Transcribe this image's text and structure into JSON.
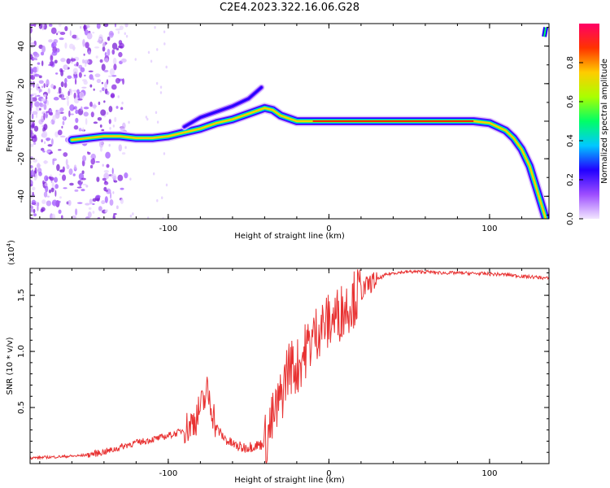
{
  "title": "C2E4.2023.322.16.06.G28",
  "chart_data": [
    {
      "type": "heatmap",
      "xlabel": "Height of straight line (km)",
      "ylabel": "Frequency (Hz)",
      "xlim": [
        -186,
        137
      ],
      "ylim": [
        -52,
        52
      ],
      "xticks": [
        -100,
        0,
        100
      ],
      "yticks": [
        -40,
        -20,
        0,
        20,
        40
      ],
      "colorbar": {
        "label": "Normalized spectral amplitude",
        "range": [
          0,
          1
        ],
        "ticks": [
          "0.0",
          "0.2",
          "0.4",
          "0.6",
          "0.8"
        ],
        "colors": [
          "#f2e6ff",
          "#9d4dff",
          "#2200ff",
          "#00c8ff",
          "#00ff66",
          "#aaff00",
          "#ffcc00",
          "#ff3300",
          "#ff0066"
        ]
      },
      "ridge": {
        "x": [
          -160,
          -150,
          -140,
          -130,
          -120,
          -110,
          -100,
          -90,
          -80,
          -70,
          -60,
          -50,
          -40,
          -35,
          -30,
          -20,
          -10,
          0,
          10,
          50,
          90,
          100,
          105,
          110,
          115,
          120,
          125,
          130,
          135
        ],
        "y": [
          -10,
          -9,
          -8,
          -8,
          -9,
          -9,
          -8,
          -6,
          -4,
          -1,
          1,
          4,
          7,
          6,
          3,
          0,
          0,
          0,
          0,
          0,
          0,
          -1,
          -3,
          -5,
          -9,
          -15,
          -24,
          -38,
          -52
        ]
      },
      "secondary_ridge": {
        "x": [
          -90,
          -80,
          -70,
          -60,
          -50,
          -42
        ],
        "y": [
          -3,
          2,
          5,
          8,
          12,
          18
        ]
      },
      "edge_feature": {
        "x": 134,
        "y": [
          45,
          50
        ]
      }
    },
    {
      "type": "line",
      "xlabel": "Height of straight line (km)",
      "ylabel": "SNR (10 * v/v)",
      "scale_note": "(x10",
      "scale_exp": "4",
      "xlim": [
        -186,
        137
      ],
      "ylim": [
        0,
        17400
      ],
      "xticks": [
        -100,
        0,
        100
      ],
      "yticks": [
        "0.5",
        "1.0",
        "1.5"
      ],
      "ytick_values": [
        5000,
        10000,
        15000
      ],
      "line_color": "#e83232",
      "series": [
        {
          "x": [
            -186,
            -170,
            -155,
            -145,
            -135,
            -125,
            -115,
            -105,
            -95,
            -88,
            -82,
            -80,
            -78,
            -76,
            -74,
            -72,
            -70,
            -66,
            -62,
            -58,
            -54,
            -50,
            -46,
            -42,
            -38,
            -36,
            -34,
            -30,
            -28,
            -26,
            -24,
            -20,
            -15,
            -10,
            -5,
            0,
            5,
            10,
            15,
            20,
            25,
            30,
            35,
            40,
            50,
            60,
            70,
            80,
            90,
            100,
            110,
            120,
            130,
            137
          ],
          "y": [
            500,
            600,
            700,
            900,
            1200,
            1700,
            2000,
            2300,
            2700,
            3200,
            4200,
            5000,
            5400,
            6500,
            5600,
            4500,
            3200,
            2400,
            1900,
            1600,
            1400,
            1500,
            1600,
            1700,
            2500,
            3500,
            4200,
            5800,
            7000,
            8400,
            8800,
            8500,
            10000,
            11200,
            12300,
            12600,
            13200,
            13900,
            14600,
            15300,
            16000,
            16400,
            16800,
            17000,
            17100,
            17100,
            17000,
            17000,
            16950,
            16900,
            16850,
            16700,
            16600,
            16500
          ]
        }
      ]
    }
  ]
}
